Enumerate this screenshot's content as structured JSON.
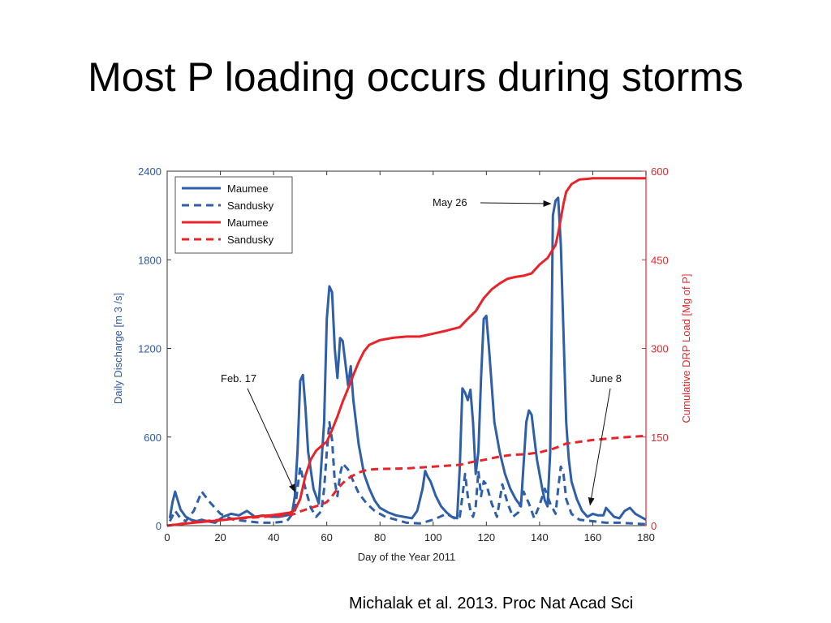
{
  "slide": {
    "title": "Most P loading occurs during storms",
    "citation": "Michalak et al. 2013. Proc Nat Acad Sci"
  },
  "chart_data": {
    "type": "line",
    "xlabel": "Day of the Year 2011",
    "ylabel_left": "Daily Discharge [m 3 /s]",
    "ylabel_right": "Cumulative DRP Load [Mg of P]",
    "xlim": [
      0,
      180
    ],
    "ylim_left": [
      0,
      2400
    ],
    "ylim_right": [
      0,
      600
    ],
    "x_ticks": [
      0,
      20,
      40,
      60,
      80,
      100,
      120,
      140,
      160,
      180
    ],
    "y_ticks_left": [
      0,
      600,
      1200,
      1800,
      2400
    ],
    "y_ticks_right": [
      0,
      150,
      300,
      450,
      600
    ],
    "grid": false,
    "legend_position": "top-left",
    "colors": {
      "discharge": "#2e5fa8",
      "load": "#e8242a"
    },
    "series": [
      {
        "name": "Maumee",
        "axis": "left",
        "style": "solid",
        "color": "#2e5fa8",
        "x": [
          1,
          2,
          3,
          4,
          5,
          7,
          9,
          11,
          13,
          15,
          18,
          21,
          24,
          27,
          30,
          33,
          36,
          39,
          42,
          45,
          47,
          48,
          49,
          50,
          51,
          52,
          53,
          55,
          57,
          59,
          60,
          61,
          62,
          63,
          64,
          65,
          66,
          67,
          68,
          69,
          70,
          72,
          74,
          76,
          78,
          80,
          83,
          86,
          89,
          92,
          94,
          96,
          97,
          98,
          99,
          101,
          103,
          105,
          107,
          109,
          110,
          111,
          112,
          113,
          114,
          115,
          116,
          117,
          118,
          119,
          120,
          121,
          123,
          125,
          127,
          129,
          131,
          133,
          135,
          136,
          137,
          138,
          139,
          140,
          141,
          142,
          143,
          144,
          145,
          146,
          147,
          148,
          149,
          150,
          151,
          152,
          154,
          156,
          158,
          160,
          162,
          164,
          165,
          166,
          168,
          170,
          172,
          174,
          176,
          178,
          180
        ],
        "y": [
          50,
          160,
          230,
          170,
          110,
          60,
          40,
          30,
          40,
          30,
          20,
          60,
          80,
          70,
          100,
          60,
          70,
          60,
          60,
          70,
          90,
          200,
          500,
          980,
          1020,
          800,
          500,
          250,
          150,
          700,
          1400,
          1620,
          1580,
          1200,
          1000,
          1270,
          1250,
          1100,
          950,
          1080,
          850,
          550,
          350,
          250,
          170,
          120,
          90,
          70,
          60,
          50,
          100,
          250,
          370,
          330,
          300,
          200,
          130,
          90,
          60,
          50,
          400,
          930,
          900,
          850,
          920,
          700,
          350,
          500,
          1000,
          1400,
          1420,
          1200,
          700,
          500,
          350,
          250,
          180,
          130,
          700,
          780,
          750,
          600,
          450,
          350,
          250,
          170,
          130,
          500,
          2100,
          2200,
          2220,
          1900,
          1300,
          700,
          450,
          300,
          180,
          100,
          60,
          80,
          70,
          70,
          120,
          100,
          60,
          50,
          100,
          120,
          80,
          60,
          40
        ]
      },
      {
        "name": "Sandusky",
        "axis": "left",
        "style": "dashed",
        "color": "#2e5fa8",
        "x": [
          1,
          3,
          5,
          7,
          10,
          13,
          16,
          20,
          25,
          30,
          35,
          40,
          45,
          48,
          50,
          52,
          54,
          56,
          58,
          59,
          60,
          61,
          62,
          63,
          64,
          65,
          66,
          68,
          70,
          72,
          75,
          78,
          82,
          86,
          90,
          95,
          100,
          105,
          108,
          110,
          111,
          112,
          113,
          114,
          115,
          116,
          117,
          118,
          119,
          120,
          122,
          124,
          126,
          128,
          130,
          132,
          134,
          136,
          138,
          140,
          142,
          144,
          146,
          147,
          148,
          149,
          150,
          152,
          155,
          160,
          165,
          170,
          175,
          180
        ],
        "y": [
          30,
          100,
          50,
          30,
          100,
          230,
          160,
          80,
          40,
          30,
          20,
          20,
          30,
          100,
          400,
          250,
          120,
          60,
          100,
          250,
          500,
          700,
          580,
          300,
          200,
          350,
          420,
          380,
          300,
          220,
          150,
          100,
          60,
          40,
          20,
          15,
          40,
          80,
          50,
          60,
          200,
          350,
          200,
          100,
          60,
          130,
          370,
          200,
          300,
          280,
          150,
          60,
          280,
          150,
          60,
          90,
          230,
          150,
          50,
          140,
          250,
          150,
          80,
          250,
          400,
          350,
          180,
          80,
          40,
          30,
          20,
          20,
          15,
          10
        ]
      },
      {
        "name": "Maumee",
        "axis": "right",
        "style": "solid",
        "color": "#e8242a",
        "x": [
          0,
          10,
          20,
          30,
          40,
          46,
          48,
          50,
          52,
          54,
          56,
          58,
          60,
          62,
          64,
          66,
          68,
          70,
          72,
          74,
          76,
          80,
          85,
          90,
          95,
          100,
          105,
          110,
          113,
          116,
          119,
          122,
          125,
          128,
          131,
          134,
          137,
          140,
          143,
          146,
          147,
          148,
          149,
          150,
          152,
          155,
          158,
          160,
          165,
          170,
          175,
          180
        ],
        "y": [
          0,
          5,
          9,
          14,
          18,
          22,
          26,
          45,
          85,
          112,
          127,
          135,
          142,
          162,
          185,
          210,
          232,
          255,
          277,
          295,
          306,
          314,
          318,
          320,
          320,
          325,
          330,
          336,
          350,
          363,
          385,
          400,
          410,
          418,
          421,
          423,
          427,
          442,
          453,
          475,
          495,
          520,
          545,
          565,
          578,
          586,
          587,
          588,
          588,
          588,
          588,
          588
        ]
      },
      {
        "name": "Sandusky",
        "axis": "right",
        "style": "dashed",
        "color": "#e8242a",
        "x": [
          0,
          10,
          20,
          30,
          40,
          46,
          48,
          50,
          52,
          54,
          56,
          58,
          60,
          62,
          64,
          66,
          68,
          70,
          72,
          74,
          76,
          80,
          90,
          100,
          110,
          115,
          120,
          125,
          130,
          135,
          140,
          145,
          148,
          150,
          155,
          160,
          170,
          180
        ],
        "y": [
          0,
          6,
          10,
          13,
          16,
          18,
          20,
          24,
          27,
          30,
          33,
          36,
          40,
          50,
          62,
          72,
          80,
          85,
          90,
          93,
          95,
          96,
          97,
          100,
          103,
          108,
          112,
          117,
          120,
          121,
          124,
          130,
          135,
          139,
          142,
          145,
          149,
          152
        ]
      }
    ],
    "legend": [
      {
        "label": "Maumee",
        "color": "#2e5fa8",
        "style": "solid"
      },
      {
        "label": "Sandusky",
        "color": "#2e5fa8",
        "style": "dashed"
      },
      {
        "label": "Maumee",
        "color": "#e8242a",
        "style": "solid"
      },
      {
        "label": "Sandusky",
        "color": "#e8242a",
        "style": "dashed"
      }
    ],
    "annotations": [
      {
        "label": "Feb. 17",
        "x": 48,
        "y_left": 230
      },
      {
        "label": "May 26",
        "x": 146,
        "y_left": 2180
      },
      {
        "label": "June 8",
        "x": 159,
        "y_left": 140
      }
    ]
  }
}
